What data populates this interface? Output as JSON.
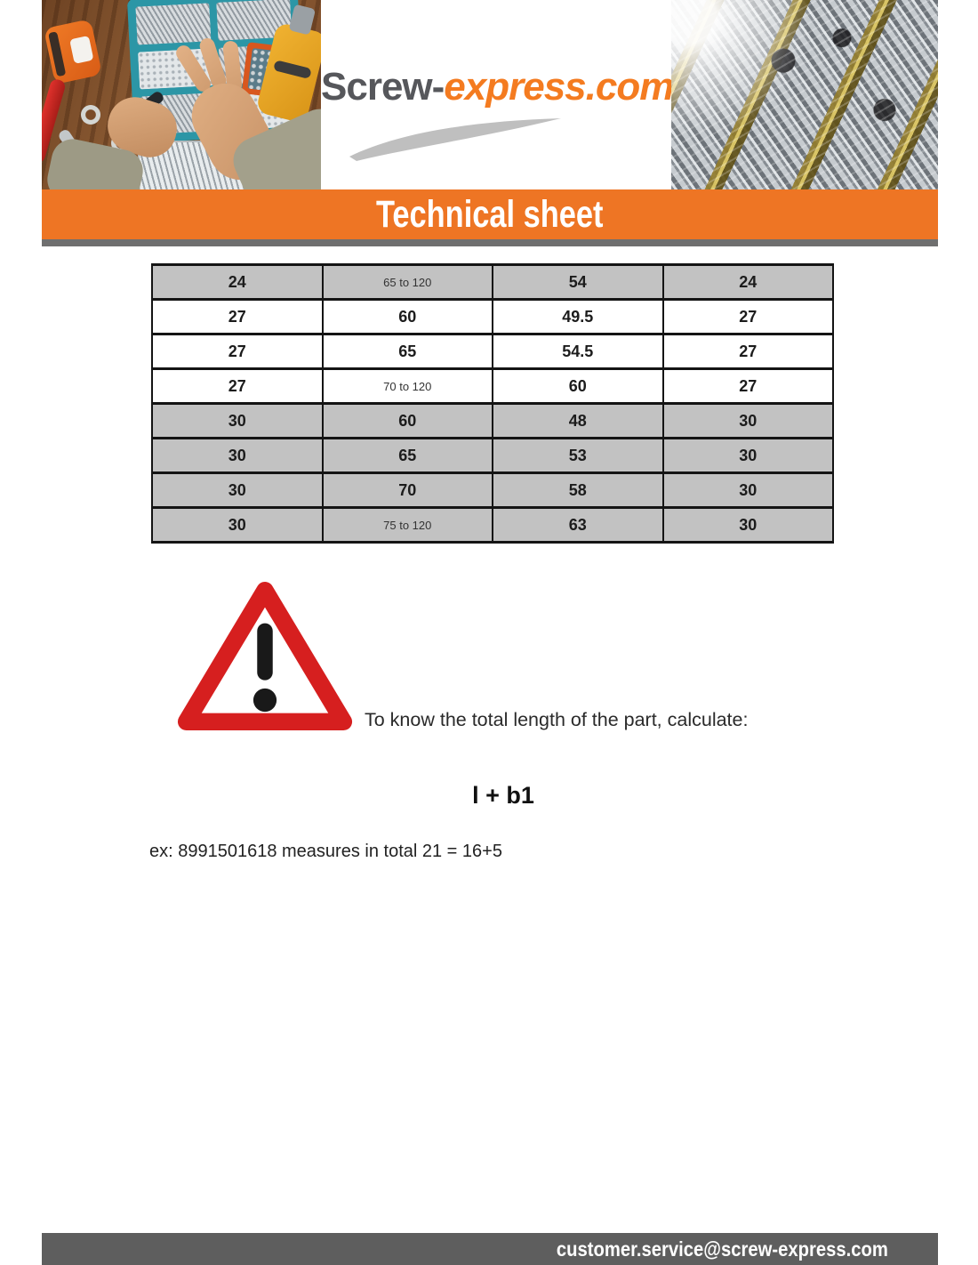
{
  "brand": {
    "logo_dark": "Screw-",
    "logo_orange": "express.com"
  },
  "banner": {
    "title": "Technical sheet"
  },
  "table": {
    "rows": [
      {
        "shade": "gray",
        "cells": [
          {
            "t": "24"
          },
          {
            "t": "65 to 120",
            "small": true
          },
          {
            "t": "54"
          },
          {
            "t": "24"
          }
        ]
      },
      {
        "shade": "white",
        "cells": [
          {
            "t": "27"
          },
          {
            "t": "60"
          },
          {
            "t": "49.5"
          },
          {
            "t": "27"
          }
        ]
      },
      {
        "shade": "white",
        "cells": [
          {
            "t": "27"
          },
          {
            "t": "65"
          },
          {
            "t": "54.5"
          },
          {
            "t": "27"
          }
        ]
      },
      {
        "shade": "white",
        "cells": [
          {
            "t": "27"
          },
          {
            "t": "70 to 120",
            "small": true
          },
          {
            "t": "60"
          },
          {
            "t": "27"
          }
        ]
      },
      {
        "shade": "gray",
        "cells": [
          {
            "t": "30"
          },
          {
            "t": "60"
          },
          {
            "t": "48"
          },
          {
            "t": "30"
          }
        ]
      },
      {
        "shade": "gray",
        "cells": [
          {
            "t": "30"
          },
          {
            "t": "65"
          },
          {
            "t": "53"
          },
          {
            "t": "30"
          }
        ]
      },
      {
        "shade": "gray",
        "cells": [
          {
            "t": "30"
          },
          {
            "t": "70"
          },
          {
            "t": "58"
          },
          {
            "t": "30"
          }
        ]
      },
      {
        "shade": "gray",
        "cells": [
          {
            "t": "30"
          },
          {
            "t": "75 to 120",
            "small": true
          },
          {
            "t": "63"
          },
          {
            "t": "30"
          }
        ]
      }
    ]
  },
  "warning": {
    "icon": "warning-triangle-icon",
    "text": "To know the total length of the part, calculate:",
    "formula": "l + b1",
    "example": "ex: 8991501618 measures in total 21 = 16+5"
  },
  "footer": {
    "email": "customer.service@screw-express.com"
  },
  "colors": {
    "accent_orange": "#ee7524",
    "logo_orange": "#f47b20",
    "logo_gray": "#56575b",
    "divider_gray": "#6f6f6f",
    "footer_gray": "#5e5e5e",
    "table_row_gray": "#c2c2c2",
    "warning_red": "#d61f1f"
  }
}
